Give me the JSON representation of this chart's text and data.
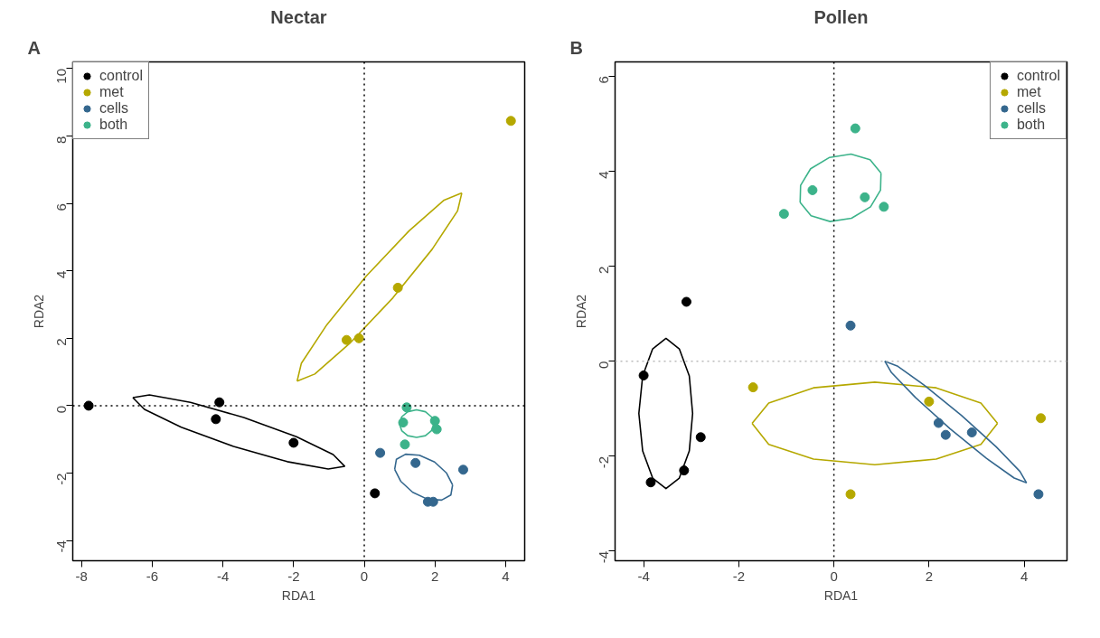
{
  "chart_data": [
    {
      "type": "scatter",
      "title": "Nectar",
      "xlabel": "RDA1",
      "ylabel": "RDA2",
      "annotations": [
        "A"
      ],
      "xlim": [
        -8.25,
        4.54
      ],
      "ylim": [
        -4.6,
        10.2
      ],
      "xticks": [
        -8,
        -6,
        -4,
        -2,
        0,
        2,
        4
      ],
      "yticks": [
        -4,
        -2,
        0,
        2,
        4,
        6,
        8,
        10
      ],
      "grid": false,
      "legend": "top left",
      "marker": "circle",
      "ref_lines": [
        {
          "axis": "x",
          "value": 0,
          "color": "#000000",
          "line_style": "dotted"
        },
        {
          "axis": "y",
          "value": 0,
          "color": "#000000",
          "line_style": "dotted"
        }
      ],
      "series": [
        {
          "name": "control",
          "color": "#000000",
          "x": [
            -7.8,
            -4.1,
            -4.2,
            -2.0,
            0.3
          ],
          "values": [
            0.0,
            0.1,
            -0.4,
            -1.1,
            -2.6
          ]
        },
        {
          "name": "met",
          "color": "#b5a800",
          "x": [
            -0.5,
            -0.15,
            0.95,
            4.15
          ],
          "values": [
            1.95,
            2.0,
            3.5,
            8.45
          ]
        },
        {
          "name": "cells",
          "color": "#34678e",
          "x": [
            0.45,
            1.45,
            2.8,
            1.8,
            1.95
          ],
          "values": [
            -1.4,
            -1.7,
            -1.9,
            -2.85,
            -2.85
          ]
        },
        {
          "name": "both",
          "color": "#3cb38a",
          "x": [
            1.2,
            1.1,
            2.0,
            2.05,
            1.15
          ],
          "values": [
            -0.05,
            -0.5,
            -0.45,
            -0.7,
            -1.15
          ]
        },
        {
          "type": "line",
          "marker": "none",
          "color": "#000000",
          "x": [
            -6.55,
            -6.08,
            -4.92,
            -3.41,
            -1.92,
            -0.88,
            -0.55
          ],
          "values": [
            0.24,
            0.32,
            0.1,
            -0.35,
            -0.92,
            -1.45,
            -1.8
          ]
        },
        {
          "type": "line",
          "marker": "none",
          "color": "#000000",
          "x": [
            -6.55,
            -6.22,
            -5.18,
            -3.7,
            -2.18,
            -1.02,
            -0.55
          ],
          "values": [
            0.24,
            -0.11,
            -0.64,
            -1.21,
            -1.66,
            -1.88,
            -1.8
          ]
        },
        {
          "type": "line",
          "marker": "none",
          "color": "#b5a800",
          "x": [
            -1.9,
            -1.78,
            -1.06,
            0.05,
            1.27,
            2.26,
            2.76
          ],
          "values": [
            0.73,
            1.26,
            2.4,
            3.84,
            5.19,
            6.1,
            6.31
          ]
        },
        {
          "type": "line",
          "marker": "none",
          "color": "#b5a800",
          "x": [
            -1.9,
            -1.4,
            -0.41,
            0.81,
            1.92,
            2.64,
            2.76
          ],
          "values": [
            0.73,
            0.94,
            1.85,
            3.2,
            4.64,
            5.78,
            6.31
          ]
        },
        {
          "type": "line",
          "marker": "none",
          "color": "#34678e",
          "x": [
            0.86,
            0.91,
            1.17,
            1.56,
            1.99,
            2.33,
            2.5
          ],
          "values": [
            -1.89,
            -1.59,
            -1.44,
            -1.47,
            -1.67,
            -2.0,
            -2.35
          ]
        },
        {
          "type": "line",
          "marker": "none",
          "color": "#34678e",
          "x": [
            0.86,
            1.03,
            1.37,
            1.8,
            2.19,
            2.45,
            2.5
          ],
          "values": [
            -1.89,
            -2.24,
            -2.57,
            -2.78,
            -2.8,
            -2.65,
            -2.35
          ]
        },
        {
          "type": "line",
          "marker": "none",
          "color": "#3cb38a",
          "x": [
            0.99,
            1.06,
            1.23,
            1.48,
            1.73,
            1.9,
            1.97
          ],
          "values": [
            -0.53,
            -0.33,
            -0.18,
            -0.12,
            -0.18,
            -0.33,
            -0.53
          ]
        },
        {
          "type": "line",
          "marker": "none",
          "color": "#3cb38a",
          "x": [
            0.99,
            1.06,
            1.23,
            1.48,
            1.73,
            1.9,
            1.97
          ],
          "values": [
            -0.53,
            -0.74,
            -0.89,
            -0.94,
            -0.89,
            -0.74,
            -0.53
          ]
        }
      ]
    },
    {
      "type": "scatter",
      "title": "Pollen",
      "xlabel": "RDA1",
      "ylabel": "RDA2",
      "annotations": [
        "B"
      ],
      "xlim": [
        -4.6,
        4.9
      ],
      "ylim": [
        -4.2,
        6.3
      ],
      "xticks": [
        -4,
        -2,
        0,
        2,
        4
      ],
      "yticks": [
        -4,
        -2,
        0,
        2,
        4,
        6
      ],
      "grid": false,
      "legend": "top right",
      "marker": "circle",
      "ref_lines": [
        {
          "axis": "x",
          "value": 0,
          "color": "#000000",
          "line_style": "dotted"
        },
        {
          "axis": "y",
          "value": 0,
          "color": "#bbbbbb",
          "line_style": "dotted"
        }
      ],
      "series": [
        {
          "name": "control",
          "color": "#000000",
          "x": [
            -4.0,
            -3.1,
            -2.8,
            -3.15,
            -3.85
          ],
          "values": [
            -0.3,
            1.25,
            -1.6,
            -2.3,
            -2.55
          ]
        },
        {
          "name": "met",
          "color": "#b5a800",
          "x": [
            -1.7,
            2.0,
            4.35,
            0.35
          ],
          "values": [
            -0.55,
            -0.85,
            -1.2,
            -2.8
          ]
        },
        {
          "name": "cells",
          "color": "#34678e",
          "x": [
            0.35,
            2.2,
            2.35,
            2.9,
            4.3
          ],
          "values": [
            0.75,
            -1.3,
            -1.55,
            -1.5,
            -2.8
          ]
        },
        {
          "name": "both",
          "color": "#3cb38a",
          "x": [
            0.45,
            -0.45,
            -1.05,
            0.65,
            1.05
          ],
          "values": [
            4.9,
            3.6,
            3.1,
            3.45,
            3.25
          ]
        },
        {
          "type": "line",
          "marker": "none",
          "color": "#000000",
          "x": [
            -4.1,
            -4.02,
            -3.81,
            -3.53,
            -3.25,
            -3.04,
            -2.97,
            null,
            -4.1,
            -4.02,
            -3.81,
            -3.53,
            -3.25,
            -3.04,
            -2.97
          ],
          "values": [
            -1.1,
            -0.31,
            0.26,
            0.48,
            0.26,
            -0.31,
            -1.1,
            null,
            -1.1,
            -1.89,
            -2.46,
            -2.68,
            -2.46,
            -1.89,
            -1.1
          ]
        },
        {
          "type": "line",
          "marker": "none",
          "color": "#b5a800",
          "x": [
            -1.72,
            -1.37,
            -0.43,
            0.86,
            2.15,
            3.09,
            3.44
          ],
          "values": [
            -1.31,
            -0.88,
            -0.56,
            -0.44,
            -0.56,
            -0.88,
            -1.31
          ]
        },
        {
          "type": "line",
          "marker": "none",
          "color": "#b5a800",
          "x": [
            -1.72,
            -1.37,
            -0.43,
            0.86,
            2.15,
            3.09,
            3.44
          ],
          "values": [
            -1.31,
            -1.75,
            -2.06,
            -2.18,
            -2.06,
            -1.75,
            -1.31
          ]
        },
        {
          "type": "line",
          "marker": "none",
          "color": "#34678e",
          "x": [
            1.07,
            1.33,
            1.92,
            2.68,
            3.41,
            3.91,
            4.05
          ],
          "values": [
            0.0,
            -0.1,
            -0.52,
            -1.14,
            -1.8,
            -2.32,
            -2.56
          ]
        },
        {
          "type": "line",
          "marker": "none",
          "color": "#34678e",
          "x": [
            1.07,
            1.21,
            1.71,
            2.44,
            3.2,
            3.79,
            4.05
          ],
          "values": [
            0.0,
            -0.24,
            -0.76,
            -1.42,
            -2.04,
            -2.46,
            -2.56
          ]
        },
        {
          "type": "line",
          "marker": "none",
          "color": "#3cb38a",
          "x": [
            -0.71,
            -0.7,
            -0.49,
            -0.09,
            0.36,
            0.76,
            0.99
          ],
          "values": [
            3.34,
            3.7,
            4.05,
            4.29,
            4.36,
            4.24,
            3.96
          ]
        },
        {
          "type": "line",
          "marker": "none",
          "color": "#3cb38a",
          "x": [
            -0.71,
            -0.48,
            -0.08,
            0.37,
            0.77,
            0.98,
            0.99
          ],
          "values": [
            3.34,
            3.06,
            2.94,
            3.01,
            3.25,
            3.6,
            3.96
          ]
        }
      ]
    }
  ]
}
